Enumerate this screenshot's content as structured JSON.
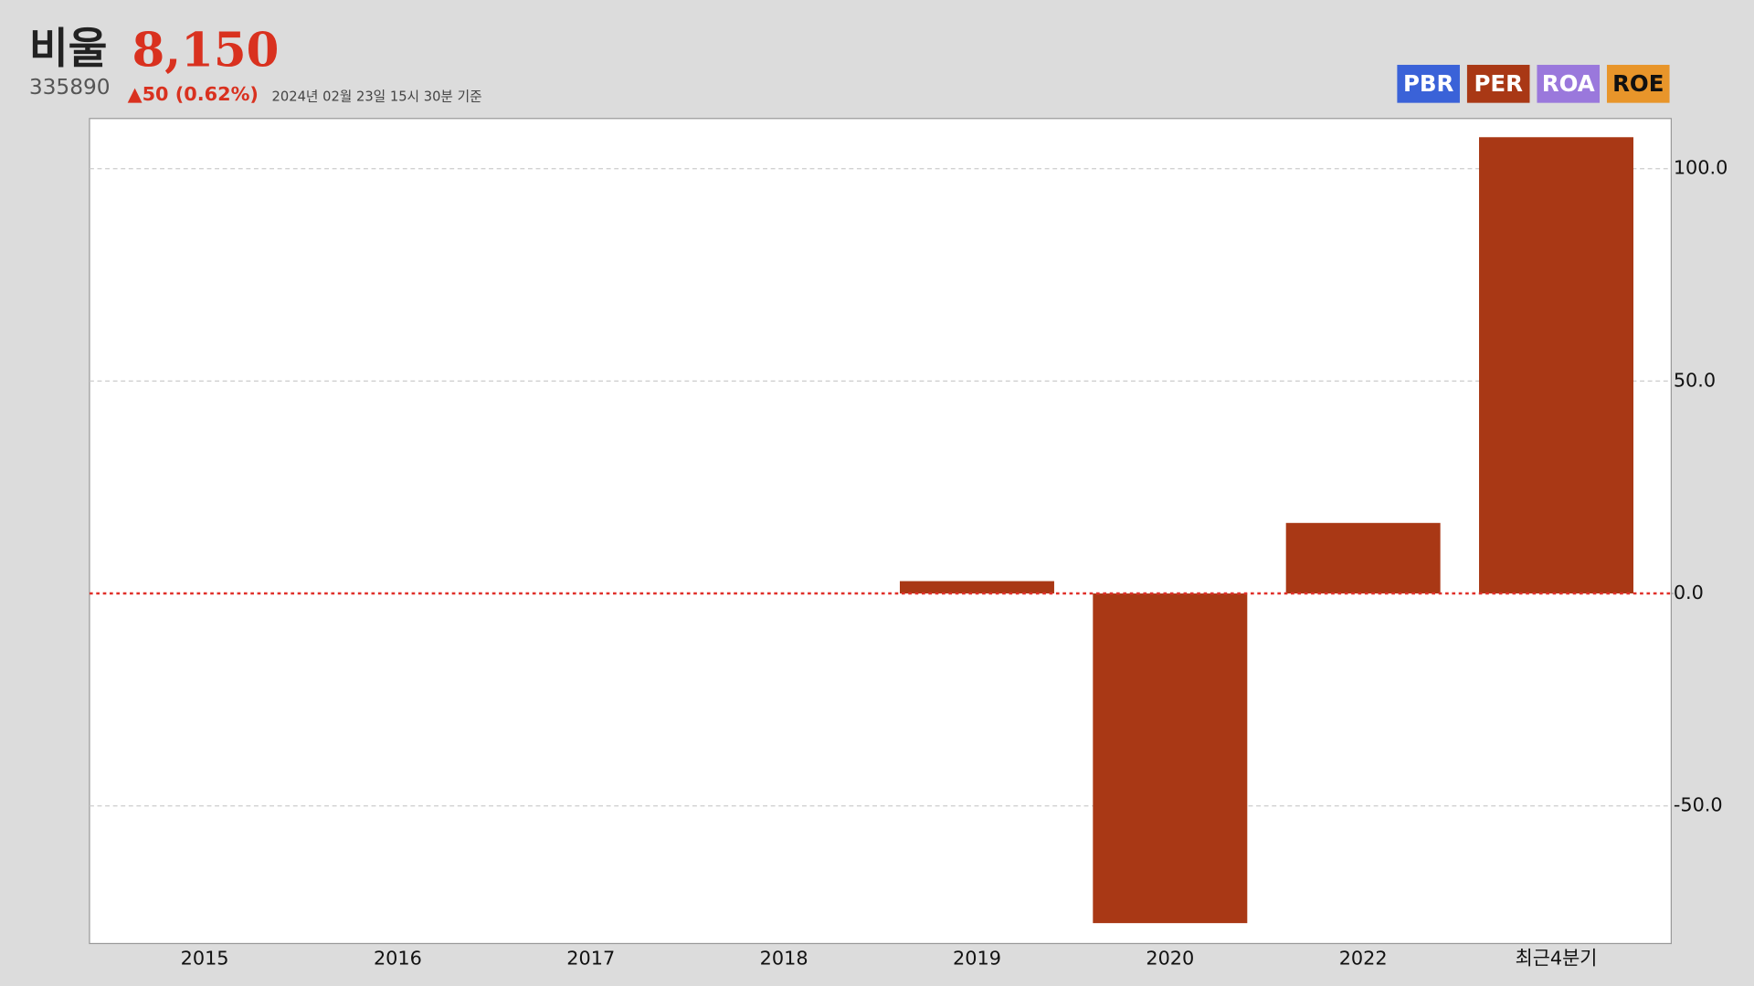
{
  "header": {
    "name": "비울",
    "price": "8,150",
    "code": "335890",
    "change": "▲50 (0.62%)",
    "timestamp": "2024년 02월 23일 15시 30분 기준"
  },
  "tabs": [
    {
      "label": "PBR",
      "color": "#3a62d8",
      "text_color": "#ffffff"
    },
    {
      "label": "PER",
      "color": "#a93815",
      "text_color": "#ffffff"
    },
    {
      "label": "ROA",
      "color": "#9a78dc",
      "text_color": "#ffffff"
    },
    {
      "label": "ROE",
      "color": "#e8952a",
      "text_color": "#111111"
    }
  ],
  "chart_data": {
    "type": "bar",
    "categories": [
      "2015",
      "2016",
      "2017",
      "2018",
      "2019",
      "2020",
      "2022",
      "최근4분기"
    ],
    "values": [
      null,
      null,
      null,
      null,
      2.9,
      -77.6,
      16.6,
      107.4
    ],
    "color": "#a93815",
    "ylim": [
      -82.4,
      111.8
    ],
    "yticks": [
      {
        "value": -50,
        "label": "-50.0"
      },
      {
        "value": 0,
        "label": "0.0"
      },
      {
        "value": 50,
        "label": "50.0"
      },
      {
        "value": 100,
        "label": "100.0"
      }
    ],
    "grid": true,
    "zero_line_color": "#e0302a"
  }
}
